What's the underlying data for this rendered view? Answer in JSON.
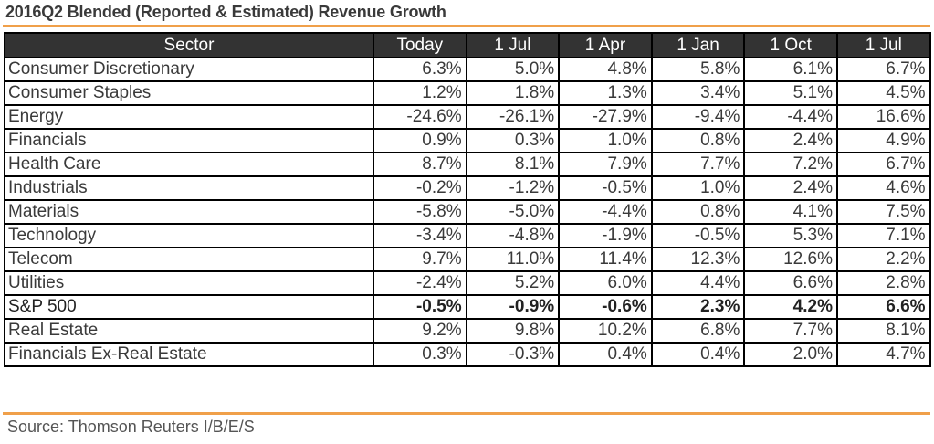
{
  "title": "2016Q2 Blended (Reported & Estimated) Revenue Growth",
  "colors": {
    "accent": "#f0a04a",
    "header_bg": "#333333",
    "border": "#000000"
  },
  "table": {
    "headers": [
      "Sector",
      "Today",
      "1 Jul",
      "1 Apr",
      "1 Jan",
      "1 Oct",
      "1 Jul"
    ],
    "rows": [
      {
        "sector": "Consumer Discretionary",
        "values": [
          "6.3%",
          "5.0%",
          "4.8%",
          "5.8%",
          "6.1%",
          "6.7%"
        ],
        "bold": false
      },
      {
        "sector": "Consumer Staples",
        "values": [
          "1.2%",
          "1.8%",
          "1.3%",
          "3.4%",
          "5.1%",
          "4.5%"
        ],
        "bold": false
      },
      {
        "sector": "Energy",
        "values": [
          "-24.6%",
          "-26.1%",
          "-27.9%",
          "-9.4%",
          "-4.4%",
          "16.6%"
        ],
        "bold": false
      },
      {
        "sector": "Financials",
        "values": [
          "0.9%",
          "0.3%",
          "1.0%",
          "0.8%",
          "2.4%",
          "4.9%"
        ],
        "bold": false
      },
      {
        "sector": "Health Care",
        "values": [
          "8.7%",
          "8.1%",
          "7.9%",
          "7.7%",
          "7.2%",
          "6.7%"
        ],
        "bold": false
      },
      {
        "sector": "Industrials",
        "values": [
          "-0.2%",
          "-1.2%",
          "-0.5%",
          "1.0%",
          "2.4%",
          "4.6%"
        ],
        "bold": false
      },
      {
        "sector": "Materials",
        "values": [
          "-5.8%",
          "-5.0%",
          "-4.4%",
          "0.8%",
          "4.1%",
          "7.5%"
        ],
        "bold": false
      },
      {
        "sector": "Technology",
        "values": [
          "-3.4%",
          "-4.8%",
          "-1.9%",
          "-0.5%",
          "5.3%",
          "7.1%"
        ],
        "bold": false
      },
      {
        "sector": "Telecom",
        "values": [
          "9.7%",
          "11.0%",
          "11.4%",
          "12.3%",
          "12.6%",
          "2.2%"
        ],
        "bold": false
      },
      {
        "sector": "Utilities",
        "values": [
          "-2.4%",
          "5.2%",
          "6.0%",
          "4.4%",
          "6.6%",
          "2.8%"
        ],
        "bold": false
      },
      {
        "sector": "S&P 500",
        "values": [
          "-0.5%",
          "-0.9%",
          "-0.6%",
          "2.3%",
          "4.2%",
          "6.6%"
        ],
        "bold": true
      },
      {
        "sector": "Real Estate",
        "values": [
          "9.2%",
          "9.8%",
          "10.2%",
          "6.8%",
          "7.7%",
          "8.1%"
        ],
        "bold": false
      },
      {
        "sector": "Financials Ex-Real Estate",
        "values": [
          "0.3%",
          "-0.3%",
          "0.4%",
          "0.4%",
          "2.0%",
          "4.7%"
        ],
        "bold": false
      }
    ]
  },
  "source": "Source: Thomson Reuters I/B/E/S"
}
